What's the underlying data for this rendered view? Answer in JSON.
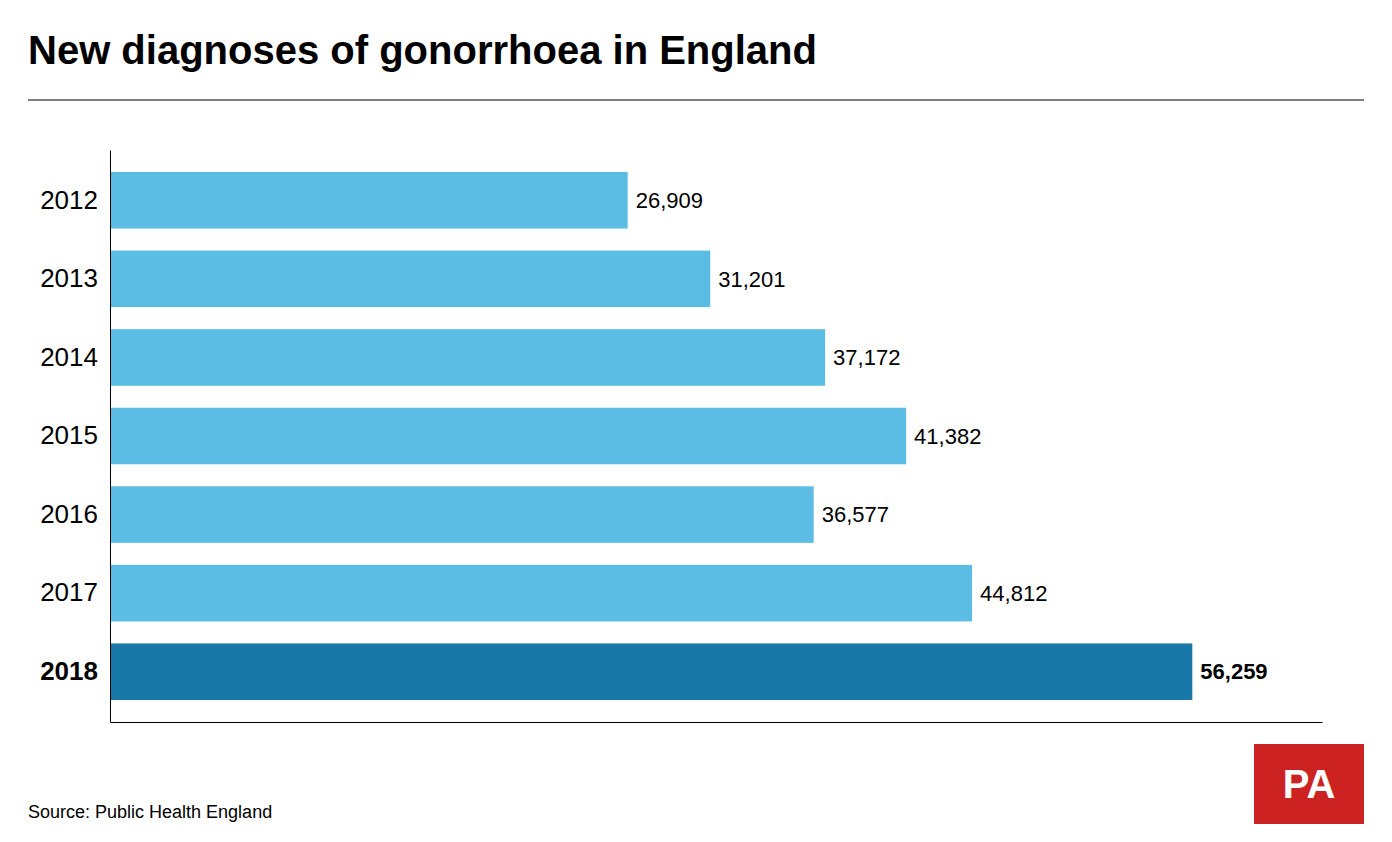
{
  "chart_data": {
    "type": "bar",
    "orientation": "horizontal",
    "title": "New diagnoses of gonorrhoea in England",
    "source": "Source: Public Health England",
    "annotations": [
      "PA"
    ],
    "categories": [
      "2012",
      "2013",
      "2014",
      "2015",
      "2016",
      "2017",
      "2018"
    ],
    "values": [
      26909,
      31201,
      37172,
      41382,
      36577,
      44812,
      56259
    ],
    "value_labels": [
      "26,909",
      "31,201",
      "37,172",
      "41,382",
      "36,577",
      "44,812",
      "56,259"
    ],
    "colors": [
      "#5bbde4",
      "#5bbde4",
      "#5bbde4",
      "#5bbde4",
      "#5bbde4",
      "#5bbde4",
      "#1878a8"
    ],
    "xlim": [
      0,
      63000
    ],
    "data_labels": true,
    "tick_labels": "y",
    "grid": false
  }
}
